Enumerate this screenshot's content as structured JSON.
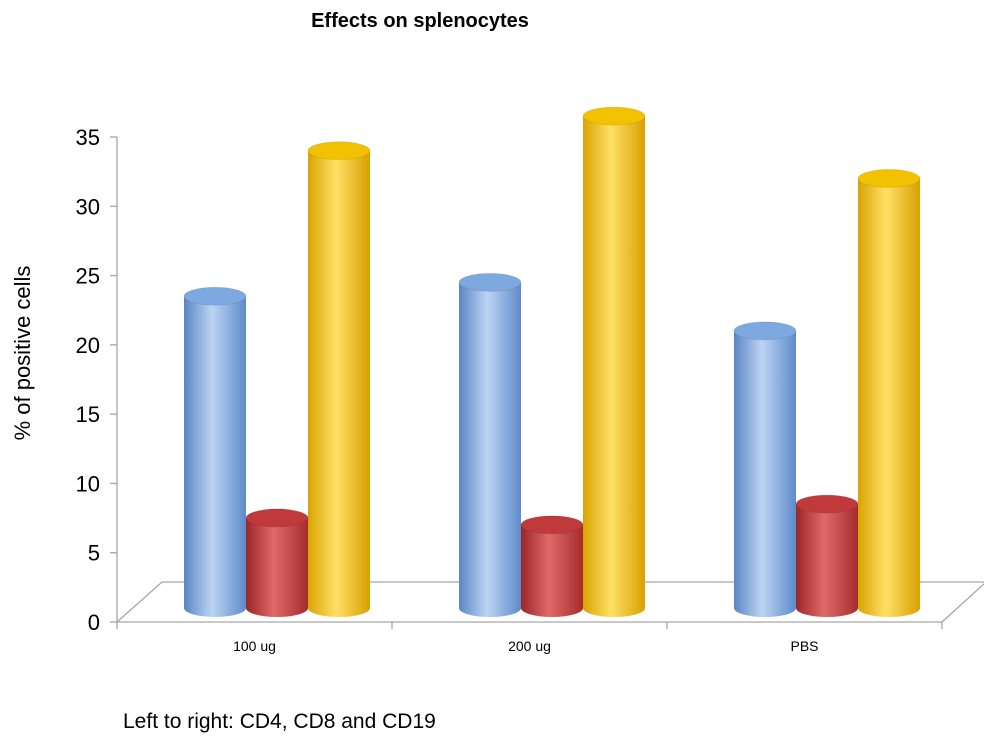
{
  "chart_data": {
    "type": "bar",
    "title": "Effects on splenocytes",
    "ylabel": "% of positive cells",
    "xlabel": "",
    "categories": [
      "100 ug",
      "200 ug",
      "PBS"
    ],
    "yticks": [
      "0",
      "5",
      "10",
      "15",
      "20",
      "25",
      "30",
      "35"
    ],
    "ylim": [
      0,
      35
    ],
    "grid": false,
    "legend": "none",
    "series": [
      {
        "values": [
          22.5,
          23.5,
          20
        ],
        "color": "#7ea8e0"
      },
      {
        "values": [
          6.5,
          6,
          7.5
        ],
        "color": "#c0393b"
      },
      {
        "values": [
          33,
          35.5,
          31
        ],
        "color": "#f2c200"
      }
    ],
    "note": "Left to right: CD4, CD8 and CD19"
  }
}
